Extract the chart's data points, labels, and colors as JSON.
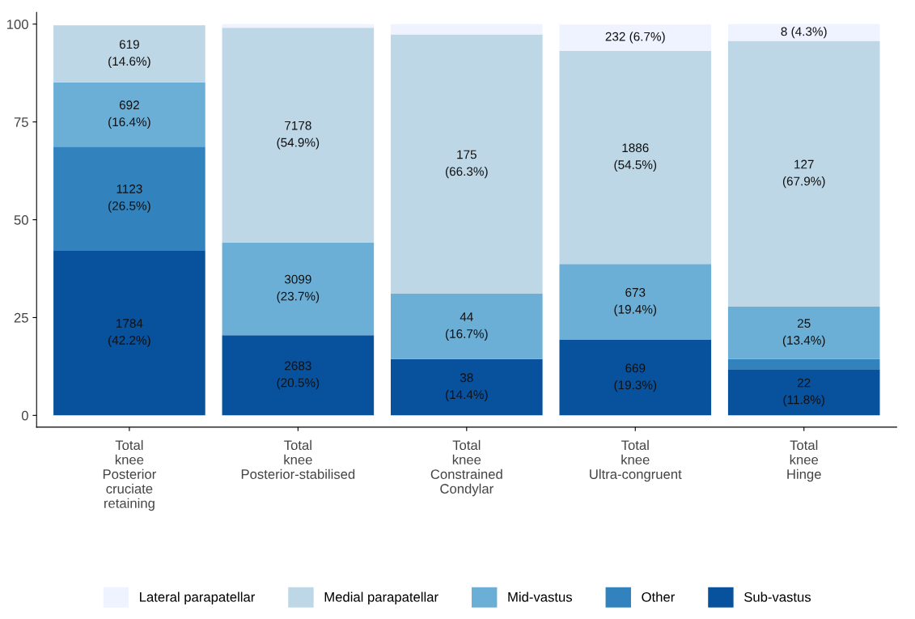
{
  "chart_data": {
    "type": "bar",
    "stacked": true,
    "categories": [
      "Total\nknee\nPosterior\ncruciate\nretaining",
      "Total\nknee\nPosterior-stabilised",
      "Total\nknee\nConstrained\nCondylar",
      "Total\nknee\nUltra-congruent",
      "Total\nknee\nHinge"
    ],
    "series": [
      {
        "name": "Sub-vastus",
        "color": "#08519c",
        "values": [
          42.2,
          20.5,
          14.4,
          19.3,
          11.8
        ],
        "value_labels": [
          "1784\n(42.2%)",
          "2683\n(20.5%)",
          "38\n(14.4%)",
          "669\n(19.3%)",
          "22\n(11.8%)"
        ]
      },
      {
        "name": "Other",
        "color": "#3182bd",
        "values": [
          26.5,
          0,
          0,
          null,
          2.6
        ],
        "value_labels": [
          "1123\n(26.5%)",
          null,
          null,
          null,
          null
        ]
      },
      {
        "name": "Mid-vastus",
        "color": "#6baed6",
        "values": [
          16.4,
          23.7,
          16.7,
          19.4,
          13.4
        ],
        "value_labels": [
          "692\n(16.4%)",
          "3099\n(23.7%)",
          "44\n(16.7%)",
          "673\n(19.4%)",
          "25\n(13.4%)"
        ]
      },
      {
        "name": "Medial parapatellar",
        "color": "#bdd7e7",
        "values": [
          14.6,
          54.9,
          66.3,
          54.5,
          67.9
        ],
        "value_labels": [
          "619\n(14.6%)",
          "7178\n(54.9%)",
          "175\n(66.3%)",
          "1886\n(54.5%)",
          "127\n(67.9%)"
        ]
      },
      {
        "name": "Lateral parapatellar",
        "color": "#eff3ff",
        "values": [
          null,
          0.9,
          2.6,
          6.7,
          4.3
        ],
        "value_labels": [
          null,
          null,
          null,
          "232 (6.7%)",
          "8 (4.3%)"
        ]
      }
    ],
    "ylim": [
      -3,
      103
    ],
    "yticks": [
      0,
      25,
      50,
      75,
      100
    ],
    "grid": false,
    "legend": "bottom"
  }
}
